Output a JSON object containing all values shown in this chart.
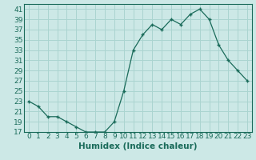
{
  "x": [
    0,
    1,
    2,
    3,
    4,
    5,
    6,
    7,
    8,
    9,
    10,
    11,
    12,
    13,
    14,
    15,
    16,
    17,
    18,
    19,
    20,
    21,
    22,
    23
  ],
  "y": [
    23,
    22,
    20,
    20,
    19,
    18,
    17,
    17,
    17,
    19,
    25,
    33,
    36,
    38,
    37,
    39,
    38,
    40,
    41,
    39,
    34,
    31,
    29,
    27
  ],
  "line_color": "#1a6b5a",
  "marker": "+",
  "marker_size": 3,
  "marker_linewidth": 1.0,
  "bg_color": "#cce8e6",
  "grid_color": "#aad4d0",
  "xlabel": "Humidex (Indice chaleur)",
  "ylim": [
    17,
    42
  ],
  "yticks": [
    17,
    19,
    21,
    23,
    25,
    27,
    29,
    31,
    33,
    35,
    37,
    39,
    41
  ],
  "xlim": [
    -0.5,
    23.5
  ],
  "xticks": [
    0,
    1,
    2,
    3,
    4,
    5,
    6,
    7,
    8,
    9,
    10,
    11,
    12,
    13,
    14,
    15,
    16,
    17,
    18,
    19,
    20,
    21,
    22,
    23
  ],
  "xlabel_fontsize": 7.5,
  "tick_fontsize": 6.5,
  "line_width": 0.9
}
